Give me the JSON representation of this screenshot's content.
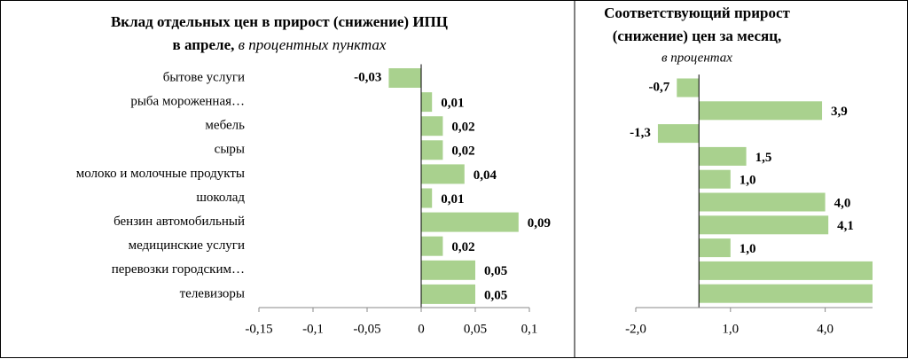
{
  "chart_data": [
    {
      "type": "barh",
      "title": [
        "Вклад отдельных цен в прирост (снижение) ИПЦ",
        "в апреле,"
      ],
      "subtitle": "в процентных пунктах",
      "categories": [
        "бытове услуги",
        "рыба мороженная…",
        "мебель",
        "сыры",
        "молоко и молочные продукты",
        "шоколад",
        "бензин автомобильный",
        "медицинские услуги",
        "перевозки городским…",
        "телевизоры"
      ],
      "values": [
        -0.03,
        0.01,
        0.02,
        0.02,
        0.04,
        0.01,
        0.09,
        0.02,
        0.05,
        0.05
      ],
      "value_labels": [
        "-0,03",
        "0,01",
        "0,02",
        "0,02",
        "0,04",
        "0,01",
        "0,09",
        "0,02",
        "0,05",
        "0,05"
      ],
      "color": "#a9d18e",
      "xlim": [
        -0.15,
        0.1
      ],
      "xticks": [
        {
          "value": -0.15,
          "label": "-0,15"
        },
        {
          "value": -0.1,
          "label": "-0,1"
        },
        {
          "value": -0.05,
          "label": "-0,05"
        },
        0,
        {
          "value": 0.05,
          "label": "0,05"
        },
        {
          "value": 0.1,
          "label": "0,1"
        }
      ]
    },
    {
      "type": "barh",
      "title": [
        "Соответствующий прирост",
        "(снижение) цен за месяц,"
      ],
      "subtitle": "в процентах",
      "values": [
        -0.7,
        3.9,
        -1.3,
        1.5,
        1.0,
        4.0,
        4.1,
        1.0,
        5.5,
        5.5
      ],
      "value_labels": [
        "-0,7",
        "3,9",
        "-1,3",
        "1,5",
        "1,0",
        "4,0",
        "4,1",
        "1,0",
        null,
        null
      ],
      "color": "#a9d18e",
      "xlim": [
        -2,
        5.5
      ],
      "xticks": [
        {
          "value": -2,
          "label": "-2,0"
        },
        {
          "value": 1,
          "label": "1,0"
        },
        {
          "value": 4,
          "label": "4,0"
        }
      ]
    }
  ]
}
